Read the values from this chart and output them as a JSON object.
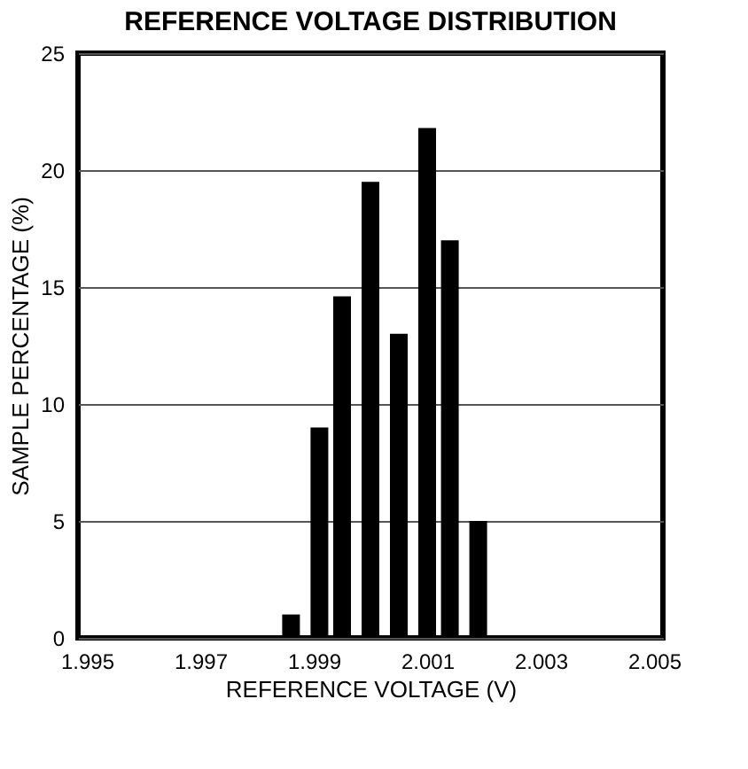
{
  "chart_data": {
    "type": "bar",
    "title": "REFERENCE VOLTAGE DISTRIBUTION",
    "xlabel": "REFERENCE VOLTAGE (V)",
    "ylabel": "SAMPLE PERCENTAGE (%)",
    "x": [
      1.9986,
      1.9991,
      1.9995,
      2.0,
      2.0005,
      2.001,
      2.0014,
      2.0019
    ],
    "series": [
      {
        "color": "#000000",
        "values": [
          1,
          9,
          14.6,
          19.5,
          13,
          21.8,
          17,
          5
        ]
      }
    ],
    "xlim": [
      1.995,
      2.005
    ],
    "xticks": [
      1.995,
      1.997,
      1.999,
      2.001,
      2.003,
      2.005
    ],
    "ylim": [
      0,
      25
    ],
    "yticks": [
      0,
      5,
      10,
      15,
      20,
      25
    ],
    "grid": "y"
  }
}
